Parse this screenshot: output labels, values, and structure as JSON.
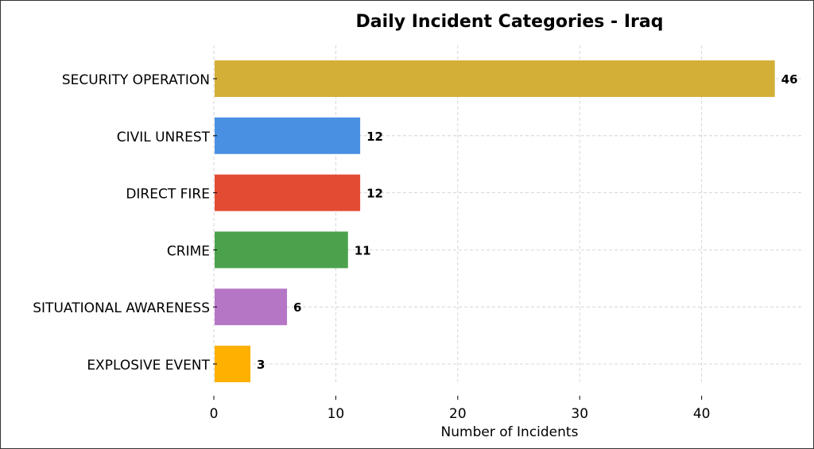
{
  "chart_data": {
    "type": "bar",
    "orientation": "horizontal",
    "title": "Daily Incident Categories - Iraq",
    "xlabel": "Number of Incidents",
    "ylabel": "",
    "xlim": [
      0,
      48.3
    ],
    "xticks": [
      0,
      10,
      20,
      30,
      40
    ],
    "grid": true,
    "categories": [
      "SECURITY OPERATION",
      "CIVIL UNREST",
      "DIRECT FIRE",
      "CRIME",
      "SITUATIONAL AWARENESS",
      "EXPLOSIVE EVENT"
    ],
    "values": [
      46,
      12,
      12,
      11,
      6,
      3
    ],
    "colors": [
      "#d4af37",
      "#4a90e2",
      "#e34c33",
      "#4ca24c",
      "#b576c6",
      "#ffb000"
    ]
  }
}
